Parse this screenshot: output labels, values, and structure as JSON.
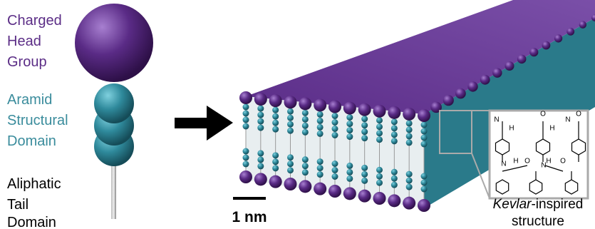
{
  "labels": {
    "head": [
      "Charged",
      "Head",
      "Group"
    ],
    "aramid": [
      "Aramid",
      "Structural",
      "Domain"
    ],
    "tail": [
      "Aliphatic",
      "Tail",
      "Domain"
    ]
  },
  "scale_bar": "1 nm",
  "inset": {
    "atoms": [
      "N",
      "H",
      "H",
      "N",
      "O",
      "O",
      "N",
      "H",
      "H",
      "N",
      "O",
      "O"
    ],
    "caption_italic": "Kevlar",
    "caption_rest": "-inspired",
    "caption_line2": "structure"
  }
}
